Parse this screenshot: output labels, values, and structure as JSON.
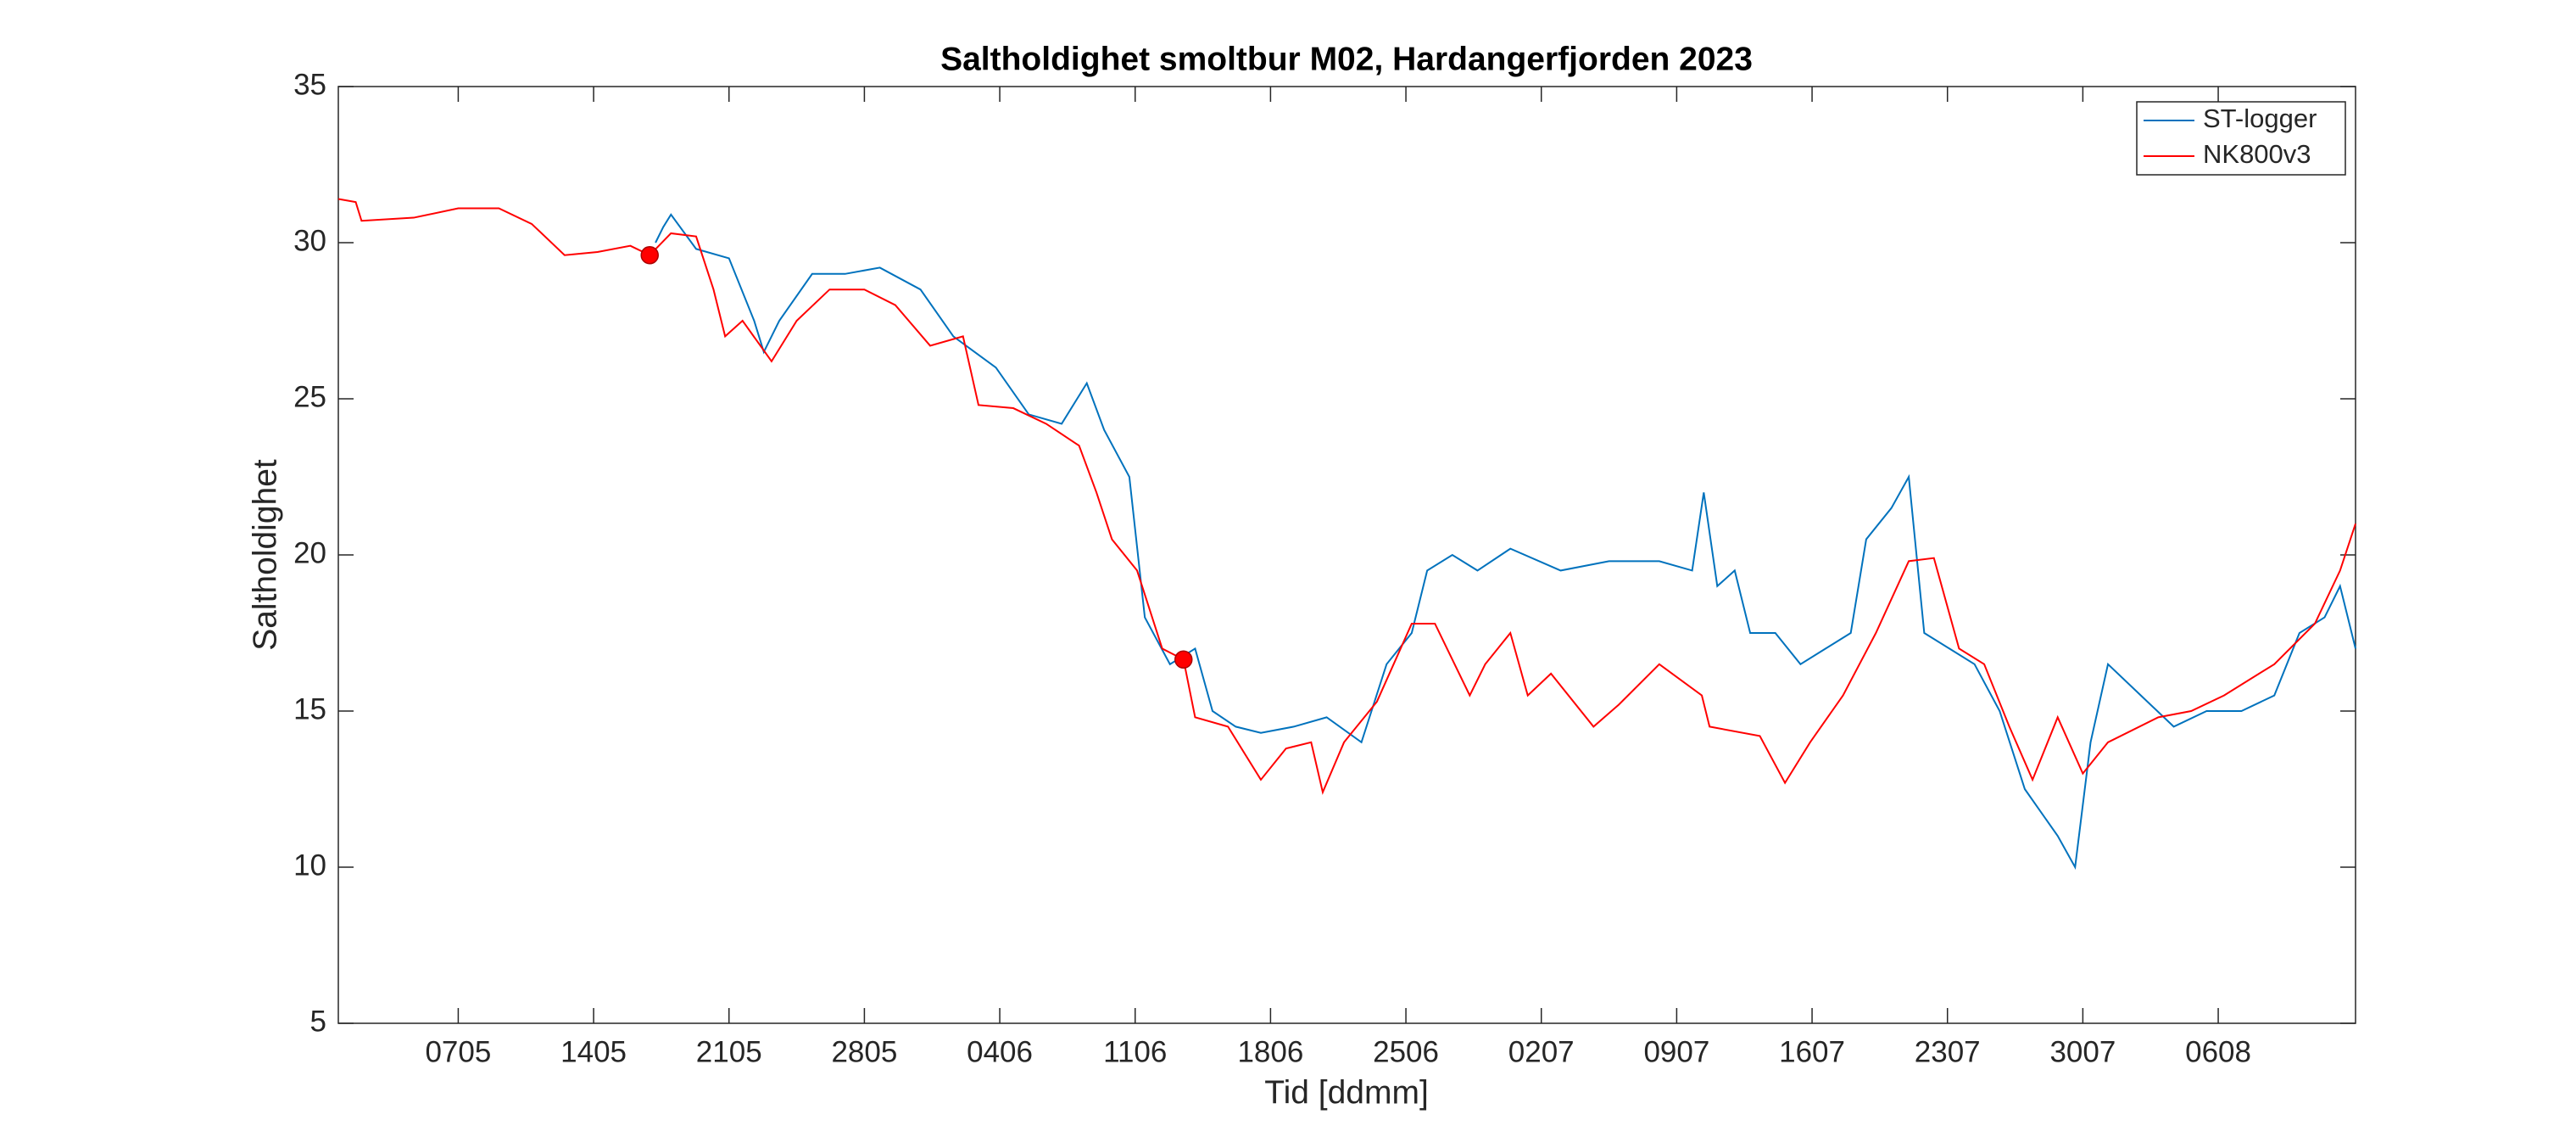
{
  "chart_data": {
    "type": "line",
    "title": "Saltholdighet smoltbur M02, Hardangerfjorden 2023",
    "xlabel": "Tid [ddmm]",
    "ylabel": "Saltholdighet",
    "xlim": [
      120.8,
      225.1
    ],
    "ylim": [
      5,
      35
    ],
    "yticks": [
      5,
      10,
      15,
      20,
      25,
      30,
      35
    ],
    "xticks": [
      {
        "value": 127,
        "label": "0705"
      },
      {
        "value": 134,
        "label": "1405"
      },
      {
        "value": 141,
        "label": "2105"
      },
      {
        "value": 148,
        "label": "2805"
      },
      {
        "value": 155,
        "label": "0406"
      },
      {
        "value": 162,
        "label": "1106"
      },
      {
        "value": 169,
        "label": "1806"
      },
      {
        "value": 176,
        "label": "2506"
      },
      {
        "value": 183,
        "label": "0207"
      },
      {
        "value": 190,
        "label": "0907"
      },
      {
        "value": 197,
        "label": "1607"
      },
      {
        "value": 204,
        "label": "2307"
      },
      {
        "value": 211,
        "label": "3007"
      },
      {
        "value": 218,
        "label": "0608"
      }
    ],
    "legend": "top-right",
    "series": [
      {
        "name": "ST-logger",
        "color": "#0072bd",
        "x": [
          137.2,
          137.6,
          138,
          139.3,
          141,
          142.3,
          142.8,
          143.6,
          145.3,
          147,
          148.8,
          150.9,
          152.6,
          154.8,
          156.5,
          158.2,
          159.5,
          160.4,
          161.7,
          162.5,
          163.8,
          165.1,
          166,
          167.2,
          168.5,
          170.2,
          171.9,
          173.7,
          175,
          176.3,
          177.1,
          178.4,
          179.7,
          181.4,
          184,
          186.5,
          189.1,
          190.8,
          191.4,
          192.1,
          193,
          193.8,
          195.1,
          196.4,
          197.7,
          199,
          199.8,
          201.1,
          202,
          202.8,
          204.1,
          205.4,
          206.7,
          208,
          209.7,
          210.6,
          211.4,
          212.3,
          214,
          215.7,
          217.4,
          219.2,
          220.9,
          222.2,
          223.5,
          224.3,
          225.1
        ],
        "values": [
          30,
          30.5,
          30.9,
          29.8,
          29.5,
          27.5,
          26.5,
          27.5,
          29,
          29,
          29.2,
          28.5,
          27,
          26,
          24.5,
          24.2,
          25.5,
          24,
          22.5,
          18,
          16.5,
          17,
          15,
          14.5,
          14.3,
          14.5,
          14.8,
          14,
          16.5,
          17.5,
          19.5,
          20,
          19.5,
          20.2,
          19.5,
          19.8,
          19.8,
          19.5,
          22,
          19,
          19.5,
          17.5,
          17.5,
          16.5,
          17,
          17.5,
          20.5,
          21.5,
          22.5,
          17.5,
          17,
          16.5,
          15,
          12.5,
          11,
          10,
          14,
          16.5,
          15.5,
          14.5,
          15,
          15,
          15.5,
          17.5,
          18,
          19,
          17
        ]
      },
      {
        "name": "NK800v3",
        "color": "#ff0000",
        "x": [
          120.8,
          121.7,
          122,
          124.7,
          127,
          129.1,
          130.8,
          132.5,
          134.2,
          135.9,
          136.9,
          138,
          139.3,
          140.2,
          140.8,
          141.7,
          143.2,
          144.5,
          146.2,
          148,
          149.6,
          151.4,
          153.1,
          153.9,
          155.7,
          157.4,
          159.1,
          160,
          160.8,
          162.1,
          163.4,
          164.5,
          165.1,
          166.8,
          168.5,
          169.8,
          171.1,
          171.7,
          172.8,
          174.5,
          176.3,
          177.5,
          179.3,
          180.1,
          181.4,
          182.3,
          183.5,
          185.7,
          187,
          189.1,
          191.3,
          191.7,
          194.3,
          195.6,
          196.9,
          198.6,
          200.3,
          202,
          203.3,
          204.6,
          205.9,
          207.2,
          208.4,
          209.7,
          211,
          212.3,
          214.9,
          216.6,
          218.3,
          220.9,
          223,
          224.3,
          225.1
        ],
        "values": [
          31.4,
          31.3,
          30.7,
          30.8,
          31.1,
          31.1,
          30.6,
          29.6,
          29.7,
          29.9,
          29.6,
          30.3,
          30.2,
          28.5,
          27,
          27.5,
          26.2,
          27.5,
          28.5,
          28.5,
          28,
          26.7,
          27,
          24.8,
          24.7,
          24.2,
          23.5,
          22,
          20.5,
          19.5,
          17,
          16.65,
          14.8,
          14.5,
          12.8,
          13.8,
          14,
          12.4,
          14,
          15.3,
          17.8,
          17.8,
          15.5,
          16.5,
          17.5,
          15.5,
          16.2,
          14.5,
          15.2,
          16.5,
          15.5,
          14.5,
          14.2,
          12.7,
          14,
          15.5,
          17.5,
          19.8,
          19.9,
          17,
          16.5,
          14.5,
          12.8,
          14.8,
          13,
          14,
          14.8,
          15,
          15.5,
          16.5,
          17.8,
          19.5,
          21
        ]
      }
    ],
    "markers": {
      "color": "#ff0000",
      "x": [
        136.9,
        164.5
      ],
      "y": [
        29.6,
        16.65
      ]
    }
  }
}
